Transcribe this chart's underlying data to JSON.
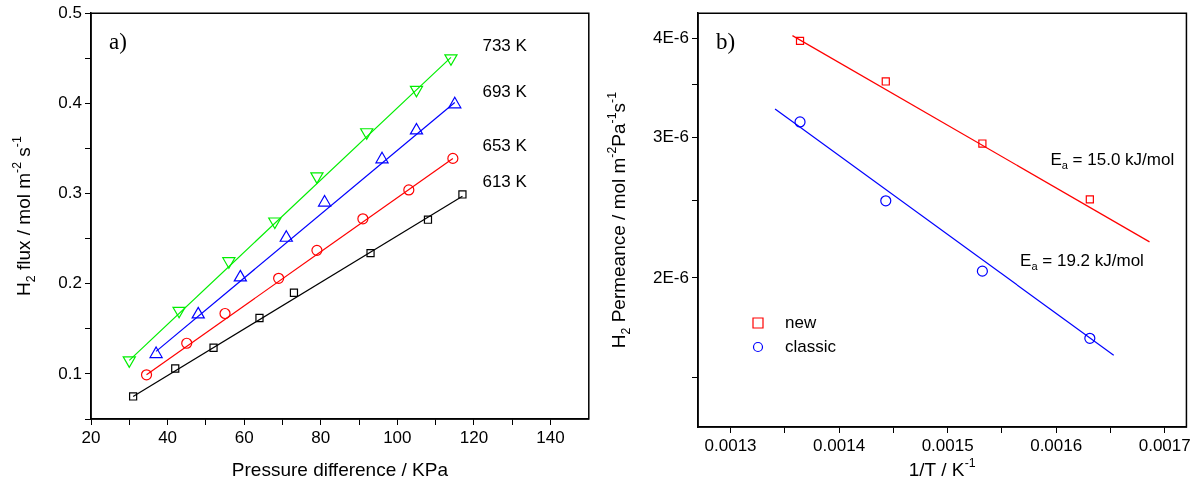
{
  "chart_data": [
    {
      "type": "scatter",
      "xlabel": "Pressure difference / KPa",
      "ylabel": "H$_{2}$ flux / mol m$^{-2}$ s$^{-1}$",
      "xlim": [
        20,
        150
      ],
      "ylim": [
        0.05,
        0.5
      ],
      "xticks": [
        20,
        {
          "value": 30,
          "label": null
        },
        40,
        {
          "value": 50,
          "label": null
        },
        60,
        {
          "value": 70,
          "label": null
        },
        80,
        {
          "value": 90,
          "label": null
        },
        100,
        {
          "value": 110,
          "label": null
        },
        120,
        {
          "value": 130,
          "label": null
        },
        140
      ],
      "yticks": [
        {
          "value": 0.05,
          "label": null
        },
        0.1,
        {
          "value": 0.15,
          "label": null
        },
        0.2,
        {
          "value": 0.25,
          "label": null
        },
        0.3,
        {
          "value": 0.35,
          "label": null
        },
        0.4,
        {
          "value": 0.45,
          "label": null
        },
        0.5
      ],
      "grid": false,
      "legend": false,
      "series": [
        {
          "type": "scatter",
          "name": "613 K",
          "marker": "square",
          "color": "#000000",
          "x": [
            31,
            42,
            52,
            64,
            73,
            93,
            108,
            117
          ],
          "values": [
            0.075,
            0.106,
            0.129,
            0.162,
            0.19,
            0.234,
            0.271,
            0.299
          ]
        },
        {
          "type": "scatter",
          "name": "653 K",
          "marker": "circle",
          "color": "#ff0000",
          "x": [
            34.5,
            45,
            55,
            69,
            79,
            91,
            103,
            114.5
          ],
          "values": [
            0.099,
            0.134,
            0.167,
            0.206,
            0.237,
            0.272,
            0.304,
            0.339
          ]
        },
        {
          "type": "scatter",
          "name": "693 K",
          "marker": "triangle",
          "color": "#0000ff",
          "x": [
            37,
            48,
            59,
            71,
            81,
            96,
            105,
            115
          ],
          "values": [
            0.122,
            0.166,
            0.207,
            0.251,
            0.29,
            0.338,
            0.37,
            0.399
          ]
        },
        {
          "type": "scatter",
          "name": "733 K",
          "marker": "triangle-down",
          "color": "#00ee00",
          "x": [
            30,
            43,
            56,
            68,
            79,
            92,
            105,
            114
          ],
          "values": [
            0.115,
            0.17,
            0.225,
            0.269,
            0.319,
            0.368,
            0.415,
            0.45
          ]
        },
        {
          "type": "line",
          "marker": "none",
          "color": "#000000",
          "x": [
            31,
            117
          ],
          "values": [
            0.075,
            0.297
          ]
        },
        {
          "type": "line",
          "marker": "none",
          "color": "#ff0000",
          "x": [
            34.5,
            114.5
          ],
          "values": [
            0.099,
            0.339
          ]
        },
        {
          "type": "line",
          "marker": "none",
          "color": "#0000ff",
          "x": [
            37,
            115
          ],
          "values": [
            0.125,
            0.401
          ]
        },
        {
          "type": "line",
          "marker": "none",
          "color": "#00ee00",
          "x": [
            30,
            114
          ],
          "values": [
            0.115,
            0.451
          ]
        }
      ],
      "annotations": [
        "a)"
      ]
    },
    {
      "type": "scatter",
      "xlabel": "1/T / K$^{-1}$",
      "ylabel": "H$_{2}$ Permeance / mol m$^{-2}$Pa$^{-1}$s$^{-1}$",
      "xlim": [
        0.00127,
        0.00172
      ],
      "ylim": [
        1.3e-06,
        4.3e-06
      ],
      "log": "y",
      "xticks": [
        0.0013,
        {
          "value": 0.00135,
          "label": null
        },
        0.0014,
        {
          "value": 0.00145,
          "label": null
        },
        0.0015,
        {
          "value": 0.00155,
          "label": null
        },
        0.0016,
        {
          "value": 0.00165,
          "label": null
        },
        0.0017
      ],
      "yticks": [
        {
          "value": 1.5e-06,
          "label": null
        },
        {
          "value": 2e-06,
          "label": "2E-6"
        },
        {
          "value": 2.5e-06,
          "label": null
        },
        {
          "value": 3e-06,
          "label": "3E-6"
        },
        {
          "value": 3.5e-06,
          "label": null
        },
        {
          "value": 4e-06,
          "label": "4E-6"
        }
      ],
      "grid": false,
      "legend": "bottom left",
      "series": [
        {
          "type": "scatter",
          "name": "new",
          "marker": "square",
          "color": "#ff0000",
          "x": [
            0.001364,
            0.001443,
            0.001532,
            0.001631
          ],
          "values": [
            3.97e-06,
            3.53e-06,
            2.95e-06,
            2.51e-06
          ]
        },
        {
          "type": "scatter",
          "name": "classic",
          "marker": "circle",
          "color": "#0000ff",
          "x": [
            0.001364,
            0.001443,
            0.001532,
            0.001631
          ],
          "values": [
            3.14e-06,
            2.5e-06,
            2.04e-06,
            1.68e-06
          ]
        },
        {
          "type": "line",
          "name": "E$_{a}$ = 15.0 kJ/mol",
          "marker": "none",
          "color": "#ff0000",
          "x": [
            0.001357,
            0.001686
          ],
          "values": [
            4.03e-06,
            2.22e-06
          ]
        },
        {
          "type": "line",
          "name": "E$_{a}$ = 19.2 kJ/mol",
          "marker": "none",
          "color": "#0000ff",
          "x": [
            0.001341,
            0.001653
          ],
          "values": [
            3.26e-06,
            1.6e-06
          ]
        }
      ],
      "annotations": [
        "b)"
      ]
    }
  ]
}
